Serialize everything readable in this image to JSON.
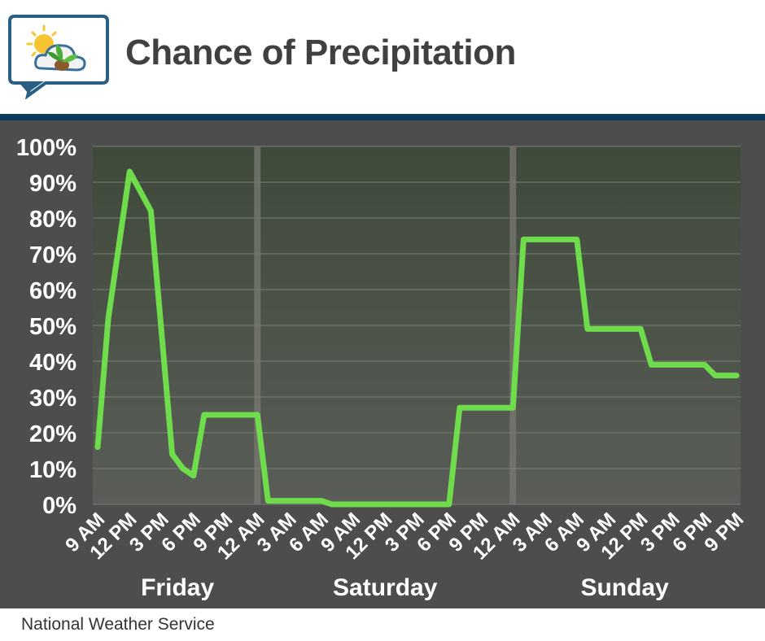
{
  "header": {
    "title": "Chance of Precipitation",
    "logo_icon": "weather-cloud-leaf-icon"
  },
  "footer": {
    "source": "National Weather Service"
  },
  "colors": {
    "background": "#4d4d4d",
    "plot_top": "#3f4a3a",
    "plot_bottom": "#5a5d58",
    "line": "#6fdc4c",
    "rule": "#0e3a5c",
    "day_divider": "#7a7a72"
  },
  "chart_data": {
    "type": "line",
    "title": "Chance of Precipitation",
    "ylabel": "",
    "xlabel": "",
    "ylim": [
      0,
      100
    ],
    "yticks": [
      "0%",
      "10%",
      "20%",
      "30%",
      "40%",
      "50%",
      "60%",
      "70%",
      "80%",
      "90%",
      "100%"
    ],
    "xlim": [
      0,
      60
    ],
    "x_unit": "hours from Friday 9 AM",
    "xticks": [
      {
        "x": 0,
        "label": "9 AM"
      },
      {
        "x": 3,
        "label": "12 PM"
      },
      {
        "x": 6,
        "label": "3 PM"
      },
      {
        "x": 9,
        "label": "6 PM"
      },
      {
        "x": 12,
        "label": "9 PM"
      },
      {
        "x": 15,
        "label": "12 AM"
      },
      {
        "x": 18,
        "label": "3 AM"
      },
      {
        "x": 21,
        "label": "6 AM"
      },
      {
        "x": 24,
        "label": "9 AM"
      },
      {
        "x": 27,
        "label": "12 PM"
      },
      {
        "x": 30,
        "label": "3 PM"
      },
      {
        "x": 33,
        "label": "6 PM"
      },
      {
        "x": 36,
        "label": "9 PM"
      },
      {
        "x": 39,
        "label": "12 AM"
      },
      {
        "x": 42,
        "label": "3 AM"
      },
      {
        "x": 45,
        "label": "6 AM"
      },
      {
        "x": 48,
        "label": "9 AM"
      },
      {
        "x": 51,
        "label": "12 PM"
      },
      {
        "x": 54,
        "label": "3 PM"
      },
      {
        "x": 57,
        "label": "6 PM"
      },
      {
        "x": 60,
        "label": "9 PM"
      }
    ],
    "day_labels": [
      {
        "label": "Friday",
        "x_center": 7.5
      },
      {
        "label": "Saturday",
        "x_center": 27
      },
      {
        "label": "Sunday",
        "x_center": 49.5
      }
    ],
    "day_dividers": [
      15,
      39
    ],
    "grid": true,
    "legend": "none",
    "series": [
      {
        "points": [
          [
            0,
            16
          ],
          [
            1,
            52
          ],
          [
            3,
            93
          ],
          [
            5,
            82
          ],
          [
            7,
            14
          ],
          [
            8,
            10
          ],
          [
            9,
            8
          ],
          [
            10,
            25
          ],
          [
            15,
            25
          ],
          [
            16,
            1
          ],
          [
            21,
            1
          ],
          [
            22,
            0
          ],
          [
            33,
            0
          ],
          [
            34,
            27
          ],
          [
            39,
            27
          ],
          [
            40,
            74
          ],
          [
            45,
            74
          ],
          [
            46,
            49
          ],
          [
            51,
            49
          ],
          [
            52,
            39
          ],
          [
            57,
            39
          ],
          [
            58,
            36
          ],
          [
            60,
            36
          ]
        ]
      }
    ]
  }
}
